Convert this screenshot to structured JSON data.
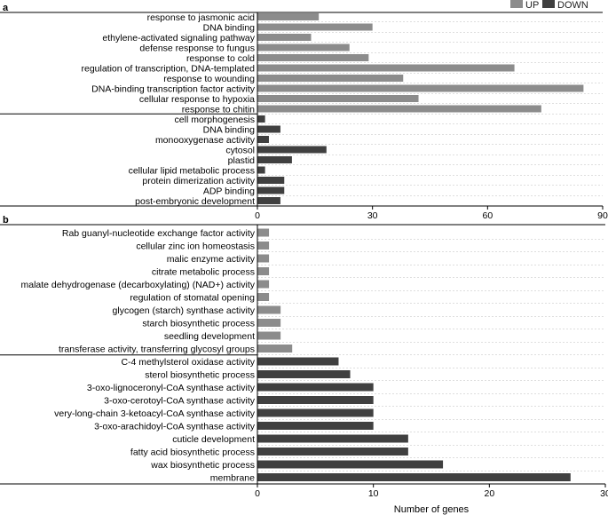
{
  "legend": {
    "up_label": "UP",
    "down_label": "DOWN",
    "up_color": "#8c8c8c",
    "down_color": "#404040"
  },
  "xlabel": "Number of genes",
  "chart_data": [
    {
      "type": "bar",
      "orientation": "horizontal",
      "panel_label": "a",
      "xlim": [
        0,
        90
      ],
      "xticks": [
        0,
        30,
        60,
        90
      ],
      "series": [
        {
          "name": "UP",
          "categories": [
            "response to jasmonic acid",
            "DNA binding",
            "ethylene-activated signaling pathway",
            "defense response to fungus",
            "response to cold",
            "regulation of transcription, DNA-templated",
            "response to wounding",
            "DNA-binding transcription factor activity",
            "cellular response to hypoxia",
            "response to chitin"
          ],
          "values": [
            16,
            30,
            14,
            24,
            29,
            67,
            38,
            85,
            42,
            74
          ]
        },
        {
          "name": "DOWN",
          "categories": [
            "cell morphogenesis",
            "DNA binding",
            "monooxygenase activity",
            "cytosol",
            "plastid",
            "cellular lipid metabolic process",
            "protein dimerization activity",
            "ADP binding",
            "post-embryonic development"
          ],
          "values": [
            2,
            6,
            3,
            18,
            9,
            2,
            7,
            7,
            6
          ]
        }
      ]
    },
    {
      "type": "bar",
      "orientation": "horizontal",
      "panel_label": "b",
      "xlim": [
        0,
        30
      ],
      "xticks": [
        0,
        10,
        20,
        30
      ],
      "xlabel": "Number of genes",
      "series": [
        {
          "name": "UP",
          "categories": [
            "Rab guanyl-nucleotide exchange factor activity",
            "cellular zinc ion homeostasis",
            "malic enzyme activity",
            "citrate metabolic process",
            "malate dehydrogenase (decarboxylating) (NAD+) activity",
            "regulation of stomatal opening",
            "glycogen (starch) synthase activity",
            "starch biosynthetic process",
            "seedling development",
            "transferase activity, transferring glycosyl groups"
          ],
          "values": [
            1,
            1,
            1,
            1,
            1,
            1,
            2,
            2,
            2,
            3
          ]
        },
        {
          "name": "DOWN",
          "categories": [
            "C-4 methylsterol oxidase activity",
            "sterol biosynthetic process",
            "3-oxo-lignoceronyl-CoA synthase activity",
            "3-oxo-cerotoyl-CoA synthase activity",
            "very-long-chain 3-ketoacyl-CoA synthase activity",
            "3-oxo-arachidoyl-CoA synthase activity",
            "cuticle development",
            "fatty acid biosynthetic process",
            "wax biosynthetic process",
            "membrane"
          ],
          "values": [
            7,
            8,
            10,
            10,
            10,
            10,
            13,
            13,
            16,
            27
          ]
        }
      ]
    }
  ]
}
